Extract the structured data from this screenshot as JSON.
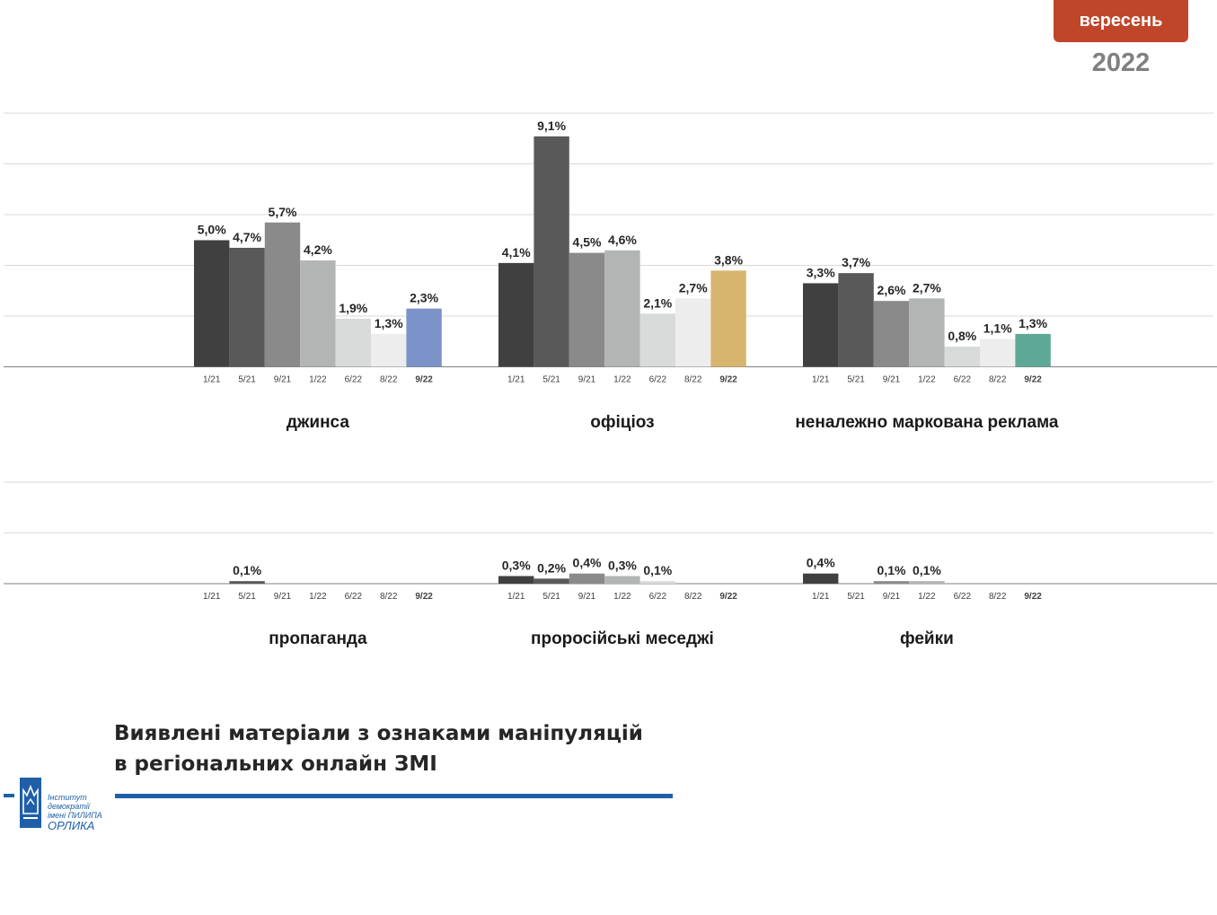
{
  "header": {
    "month_badge": "вересень",
    "year": "2022"
  },
  "title": {
    "line1": "Виявлені матеріали з ознаками маніпуляцій",
    "line2": "в регіональних онлайн ЗМІ"
  },
  "logo": {
    "line1": "Інститут демократії",
    "line2": "імені ПИЛИПА",
    "line3": "ОРЛИКА"
  },
  "colors": {
    "s1": "#404040",
    "s2": "#595959",
    "s3": "#8a8a8a",
    "s4": "#b3b4b4",
    "s5": "#d9dada",
    "s6": "#ecedec",
    "dzhynsa": "#7b93c9",
    "ofitsioz": "#d8b56e",
    "reklama": "#5ea897",
    "badge": "#c0462a",
    "accent_line": "#1f5fa8"
  },
  "chart_data": [
    {
      "type": "bar",
      "title": "джинса",
      "categories": [
        "1/21",
        "5/21",
        "9/21",
        "1/22",
        "6/22",
        "8/22",
        "9/22"
      ],
      "values": [
        5.0,
        4.7,
        5.7,
        4.2,
        1.9,
        1.3,
        2.3
      ],
      "labels": [
        "5,0%",
        "4,7%",
        "5,7%",
        "4,2%",
        "1,9%",
        "1,3%",
        "2,3%"
      ],
      "highlight_color": "#7b93c9",
      "ylim": [
        0,
        10
      ],
      "grid": true
    },
    {
      "type": "bar",
      "title": "офіціоз",
      "categories": [
        "1/21",
        "5/21",
        "9/21",
        "1/22",
        "6/22",
        "8/22",
        "9/22"
      ],
      "values": [
        4.1,
        9.1,
        4.5,
        4.6,
        2.1,
        2.7,
        3.8
      ],
      "labels": [
        "4,1%",
        "9,1%",
        "4,5%",
        "4,6%",
        "2,1%",
        "2,7%",
        "3,8%"
      ],
      "highlight_color": "#d8b56e",
      "ylim": [
        0,
        10
      ],
      "grid": true
    },
    {
      "type": "bar",
      "title": "неналежно маркована реклама",
      "categories": [
        "1/21",
        "5/21",
        "9/21",
        "1/22",
        "6/22",
        "8/22",
        "9/22"
      ],
      "values": [
        3.3,
        3.7,
        2.6,
        2.7,
        0.8,
        1.1,
        1.3
      ],
      "labels": [
        "3,3%",
        "3,7%",
        "2,6%",
        "2,7%",
        "0,8%",
        "1,1%",
        "1,3%"
      ],
      "highlight_color": "#5ea897",
      "ylim": [
        0,
        10
      ],
      "grid": true
    },
    {
      "type": "bar",
      "title": "пропаганда",
      "categories": [
        "1/21",
        "5/21",
        "9/21",
        "1/22",
        "6/22",
        "8/22",
        "9/22"
      ],
      "values": [
        0,
        0.1,
        0,
        0,
        0,
        0,
        0
      ],
      "labels": [
        "",
        "0,1%",
        "",
        "",
        "",
        "",
        ""
      ],
      "highlight_color": "#ecedec",
      "ylim": [
        0,
        10
      ],
      "grid": true
    },
    {
      "type": "bar",
      "title": "проросійські меседжі",
      "categories": [
        "1/21",
        "5/21",
        "9/21",
        "1/22",
        "6/22",
        "8/22",
        "9/22"
      ],
      "values": [
        0.3,
        0.2,
        0.4,
        0.3,
        0.1,
        0,
        0
      ],
      "labels": [
        "0,3%",
        "0,2%",
        "0,4%",
        "0,3%",
        "0,1%",
        "",
        ""
      ],
      "highlight_color": "#ecedec",
      "ylim": [
        0,
        10
      ],
      "grid": true
    },
    {
      "type": "bar",
      "title": "фейки",
      "categories": [
        "1/21",
        "5/21",
        "9/21",
        "1/22",
        "6/22",
        "8/22",
        "9/22"
      ],
      "values": [
        0.4,
        0,
        0.1,
        0.1,
        0,
        0,
        0
      ],
      "labels": [
        "0,4%",
        "",
        "0,1%",
        "0,1%",
        "",
        "",
        ""
      ],
      "highlight_color": "#ecedec",
      "ylim": [
        0,
        10
      ],
      "grid": true
    }
  ]
}
